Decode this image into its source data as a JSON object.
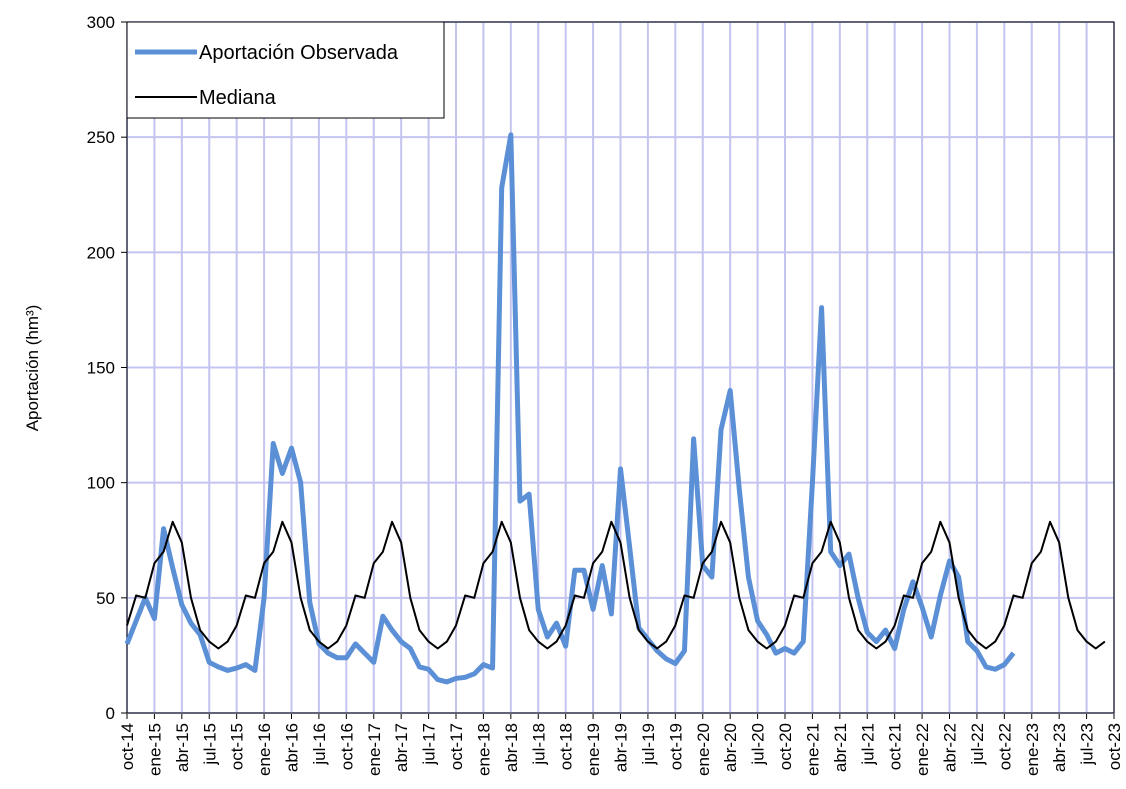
{
  "chart_data": {
    "type": "line",
    "y_label": "Aportación (hm³)",
    "categories": [
      "oct-14",
      null,
      null,
      "ene-15",
      null,
      null,
      "abr-15",
      null,
      null,
      "jul-15",
      null,
      null,
      "oct-15",
      null,
      null,
      "ene-16",
      null,
      null,
      "abr-16",
      null,
      null,
      "jul-16",
      null,
      null,
      "oct-16",
      null,
      null,
      "ene-17",
      null,
      null,
      "abr-17",
      null,
      null,
      "jul-17",
      null,
      null,
      "oct-17",
      null,
      null,
      "ene-18",
      null,
      null,
      "abr-18",
      null,
      null,
      "jul-18",
      null,
      null,
      "oct-18",
      null,
      null,
      "ene-19",
      null,
      null,
      "abr-19",
      null,
      null,
      "jul-19",
      null,
      null,
      "oct-19",
      null,
      null,
      "ene-20",
      null,
      null,
      "abr-20",
      null,
      null,
      "jul-20",
      null,
      null,
      "oct-20",
      null,
      null,
      "ene-21",
      null,
      null,
      "abr-21",
      null,
      null,
      "jul-21",
      null,
      null,
      "oct-21",
      null,
      null,
      "ene-22",
      null,
      null,
      "abr-22",
      null,
      null,
      "jul-22",
      null,
      null,
      "oct-22",
      null,
      null,
      "ene-23",
      null,
      null,
      "abr-23",
      null,
      null,
      "jul-23",
      null,
      null,
      "oct-23"
    ],
    "series": [
      {
        "name": "Aportación Observada",
        "color": "#5b8fd6",
        "width": 5,
        "values": [
          30,
          40,
          50,
          41,
          80,
          63,
          47,
          39,
          34,
          22,
          20,
          18.5,
          19.5,
          21,
          18.5,
          50,
          117,
          104,
          115,
          100,
          48,
          30,
          26,
          24,
          24,
          30,
          26,
          22,
          42,
          36,
          31,
          28,
          20,
          19,
          14.5,
          13.5,
          15,
          15.5,
          17,
          21,
          19.5,
          228,
          251,
          92,
          95,
          45,
          33,
          39,
          29,
          62,
          62,
          45,
          64,
          43,
          106,
          72,
          37,
          32,
          27,
          23.5,
          21.5,
          27,
          119,
          64,
          59,
          123,
          140,
          97,
          59,
          40,
          34,
          26,
          28,
          26,
          31,
          100,
          176,
          70,
          64,
          69,
          50,
          35,
          31,
          36,
          28,
          45,
          57,
          46,
          33,
          51,
          66,
          59,
          31,
          27,
          20,
          19,
          21,
          26,
          null,
          null,
          null,
          null,
          null,
          null,
          null,
          null,
          null,
          null,
          null
        ]
      },
      {
        "name": "Mediana",
        "color": "#000000",
        "width": 2,
        "values": [
          38,
          51,
          50,
          65,
          70,
          83,
          74,
          50,
          36,
          31,
          28,
          31,
          38,
          51,
          50,
          65,
          70,
          83,
          74,
          50,
          36,
          31,
          28,
          31,
          38,
          51,
          50,
          65,
          70,
          83,
          74,
          50,
          36,
          31,
          28,
          31,
          38,
          51,
          50,
          65,
          70,
          83,
          74,
          50,
          36,
          31,
          28,
          31,
          38,
          51,
          50,
          65,
          70,
          83,
          74,
          50,
          36,
          31,
          28,
          31,
          38,
          51,
          50,
          65,
          70,
          83,
          74,
          50,
          36,
          31,
          28,
          31,
          38,
          51,
          50,
          65,
          70,
          83,
          74,
          50,
          36,
          31,
          28,
          31,
          38,
          51,
          50,
          65,
          70,
          83,
          74,
          50,
          36,
          31,
          28,
          31,
          38,
          51,
          50,
          65,
          70,
          83,
          74,
          50,
          36,
          31,
          28,
          31,
          null
        ]
      }
    ],
    "ylim": [
      0,
      300
    ],
    "yticks": [
      0,
      50,
      100,
      150,
      200,
      250,
      300
    ],
    "grid": true,
    "grid_color": "#c4c4f0",
    "legend": "upper-left"
  }
}
